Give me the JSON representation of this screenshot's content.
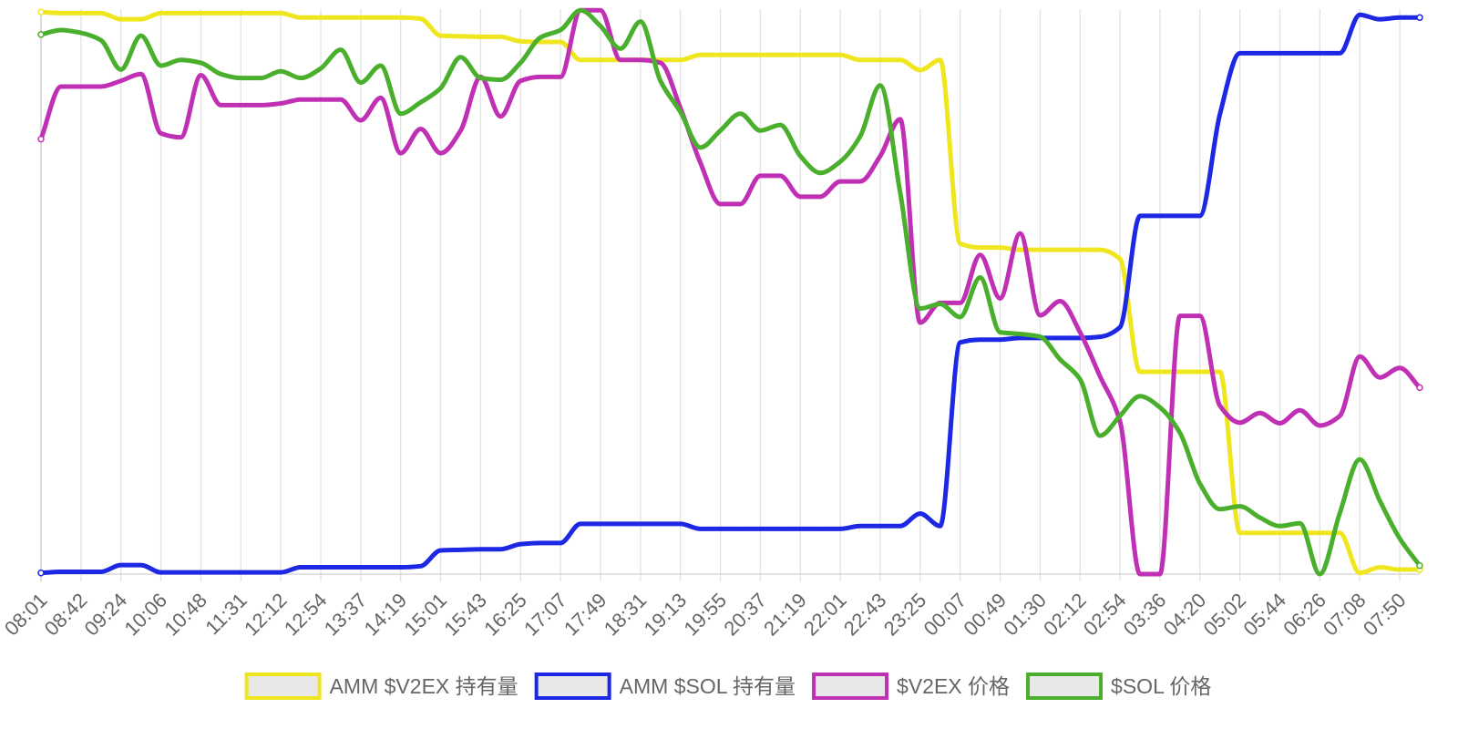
{
  "chart_data": {
    "type": "line",
    "title": "",
    "xlabel": "",
    "ylabel": "",
    "grid": true,
    "legend_position": "bottom",
    "x": [
      "08:01",
      "08:22",
      "08:42",
      "09:03",
      "09:24",
      "09:45",
      "10:06",
      "10:27",
      "10:48",
      "11:10",
      "11:31",
      "11:51",
      "12:12",
      "12:33",
      "12:54",
      "13:16",
      "13:37",
      "13:58",
      "14:19",
      "14:40",
      "15:01",
      "15:22",
      "15:43",
      "16:04",
      "16:25",
      "16:46",
      "17:07",
      "17:28",
      "17:49",
      "18:10",
      "18:31",
      "18:52",
      "19:13",
      "19:34",
      "19:55",
      "20:16",
      "20:37",
      "20:58",
      "21:19",
      "21:40",
      "22:01",
      "22:22",
      "22:43",
      "23:04",
      "23:25",
      "23:46",
      "00:07",
      "00:28",
      "00:49",
      "01:09",
      "01:30",
      "01:51",
      "02:12",
      "02:33",
      "02:54",
      "03:15",
      "03:36",
      "03:58",
      "04:20",
      "04:41",
      "05:02",
      "05:23",
      "05:44",
      "06:05",
      "06:26",
      "06:47",
      "07:08",
      "07:29",
      "07:50",
      "08:11"
    ],
    "x_tick_labels": [
      "08:01",
      "08:42",
      "09:24",
      "10:06",
      "10:48",
      "11:31",
      "12:12",
      "12:54",
      "13:37",
      "14:19",
      "15:01",
      "15:43",
      "16:25",
      "17:07",
      "17:49",
      "18:31",
      "19:13",
      "19:55",
      "20:37",
      "21:19",
      "22:01",
      "22:43",
      "23:25",
      "00:07",
      "00:49",
      "01:30",
      "02:12",
      "02:54",
      "03:36",
      "04:20",
      "05:02",
      "05:44",
      "06:26",
      "07:08",
      "07:50"
    ],
    "ylim": [
      0,
      100
    ],
    "series": [
      {
        "name": "AMM $V2EX 持有量",
        "color": "#f0e620",
        "values": [
          99.5,
          99.3,
          99.3,
          99.3,
          98.2,
          98.2,
          99.3,
          99.3,
          99.3,
          99.3,
          99.3,
          99.3,
          99.3,
          98.5,
          98.5,
          98.5,
          98.5,
          98.5,
          98.5,
          98.3,
          95.3,
          95.2,
          95.1,
          95.1,
          94.3,
          94.2,
          94.2,
          91.0,
          91.0,
          91.0,
          91.0,
          91.0,
          91.0,
          91.9,
          91.9,
          91.9,
          91.9,
          91.9,
          91.9,
          91.9,
          91.9,
          91.0,
          91.0,
          91.0,
          89.2,
          91.0,
          58.5,
          57.8,
          57.8,
          57.4,
          57.4,
          57.4,
          57.4,
          57.4,
          55.8,
          35.8,
          35.8,
          35.8,
          35.8,
          35.8,
          7.3,
          7.3,
          7.3,
          7.3,
          7.3,
          7.3,
          0.2,
          1.2,
          0.8,
          0.8
        ]
      },
      {
        "name": "AMM $SOL 持有量",
        "color": "#1c28e4",
        "values": [
          0.2,
          0.4,
          0.4,
          0.4,
          1.6,
          1.6,
          0.3,
          0.3,
          0.3,
          0.3,
          0.3,
          0.3,
          0.3,
          1.2,
          1.2,
          1.2,
          1.2,
          1.2,
          1.2,
          1.4,
          4.2,
          4.3,
          4.4,
          4.4,
          5.3,
          5.5,
          5.5,
          8.9,
          8.9,
          8.9,
          8.9,
          8.9,
          8.9,
          8.0,
          8.0,
          8.0,
          8.0,
          8.0,
          8.0,
          8.0,
          8.0,
          8.5,
          8.5,
          8.5,
          10.7,
          8.5,
          41.0,
          41.5,
          41.5,
          41.8,
          41.8,
          41.8,
          41.8,
          42.0,
          43.7,
          63.4,
          63.4,
          63.4,
          63.4,
          81.4,
          92.2,
          92.2,
          92.2,
          92.2,
          92.2,
          92.2,
          99.0,
          98.2,
          98.5,
          98.5
        ]
      },
      {
        "name": "$V2EX 价格",
        "color": "#c030b4",
        "values": [
          77.0,
          86.3,
          86.3,
          86.3,
          87.3,
          88.5,
          78.0,
          77.3,
          88.3,
          83.0,
          83.0,
          83.0,
          83.3,
          84.0,
          84.0,
          84.0,
          80.3,
          84.3,
          74.5,
          78.8,
          74.5,
          78.5,
          88.0,
          81.0,
          87.3,
          88.0,
          88.0,
          99.8,
          99.8,
          91.0,
          91.0,
          90.5,
          82.5,
          72.8,
          65.5,
          65.5,
          70.5,
          70.5,
          66.8,
          66.8,
          69.5,
          69.5,
          74.0,
          80.5,
          44.5,
          48.0,
          48.0,
          56.5,
          48.8,
          60.3,
          45.8,
          48.3,
          42.8,
          35.0,
          27.0,
          0.0,
          0.0,
          45.7,
          45.7,
          29.8,
          26.8,
          28.5,
          26.7,
          29.0,
          26.3,
          28.0,
          38.5,
          34.8,
          36.5,
          33.0
        ]
      },
      {
        "name": "$SOL 价格",
        "color": "#4aaf2c",
        "values": [
          95.5,
          96.3,
          95.8,
          94.5,
          89.3,
          95.3,
          90.0,
          91.0,
          90.5,
          88.5,
          87.8,
          87.8,
          89.0,
          87.8,
          89.5,
          92.8,
          87.0,
          90.0,
          81.5,
          83.5,
          86.0,
          91.5,
          87.8,
          87.5,
          90.5,
          95.0,
          96.3,
          99.8,
          97.0,
          93.0,
          97.8,
          87.3,
          81.8,
          75.5,
          78.5,
          81.5,
          78.5,
          79.5,
          74.0,
          71.0,
          73.0,
          77.5,
          86.5,
          67.5,
          47.0,
          47.8,
          45.5,
          52.5,
          42.8,
          42.5,
          42.0,
          38.0,
          34.5,
          24.5,
          28.0,
          31.5,
          29.5,
          25.0,
          16.0,
          11.5,
          12.0,
          10.0,
          8.5,
          9.0,
          0.0,
          10.8,
          20.3,
          13.0,
          6.3,
          1.5
        ]
      }
    ]
  }
}
